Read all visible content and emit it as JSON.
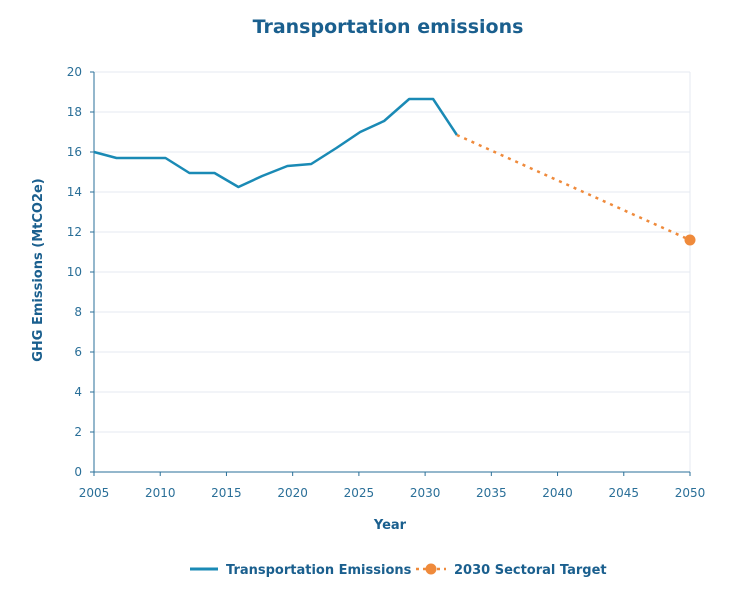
{
  "chart_data": {
    "type": "line",
    "title": "Transportation emissions",
    "xlabel": "Year",
    "ylabel": "GHG Emissions (MtCO2e)",
    "xlim": [
      2005,
      2050
    ],
    "ylim": [
      0,
      20
    ],
    "x_ticks": [
      2005,
      2010,
      2015,
      2020,
      2025,
      2030,
      2035,
      2040,
      2045,
      2050
    ],
    "y_ticks": [
      0,
      2,
      4,
      6,
      8,
      10,
      12,
      14,
      16,
      18,
      20
    ],
    "grid": "horizontal",
    "legend_position": "bottom",
    "series": [
      {
        "name": "Transportation Emissions",
        "style": "solid",
        "color": "#1a8ab5",
        "x": [
          2005,
          2006.7,
          2008.5,
          2010.4,
          2012.2,
          2014.1,
          2015.9,
          2017.7,
          2019.6,
          2021.4,
          2023.3,
          2025.1,
          2026.9,
          2028.8,
          2030.6,
          2032.4
        ],
        "y": [
          16.0,
          15.7,
          15.7,
          15.7,
          14.95,
          14.95,
          14.25,
          14.8,
          15.3,
          15.4,
          16.2,
          17.0,
          17.55,
          18.65,
          18.65,
          16.85
        ]
      },
      {
        "name": "2030 Sectoral Target",
        "style": "dotted",
        "color": "#ef8a3b",
        "x": [
          2032.4,
          2050
        ],
        "y": [
          16.85,
          11.6
        ],
        "marker_at": [
          2050,
          11.6
        ]
      }
    ]
  }
}
